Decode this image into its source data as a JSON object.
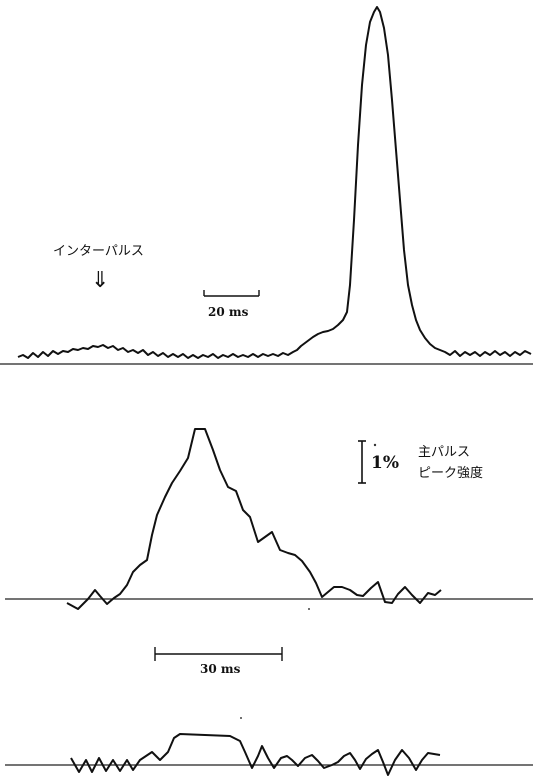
{
  "annotations": {
    "interpulse_label": "インターパルス",
    "interpulse_arrow": "⇓",
    "time_scale_top": "20 ms",
    "time_scale_bottom": "30 ms",
    "intensity_scale_value": "1%",
    "intensity_scale_caption_line1": "主パルス",
    "intensity_scale_caption_line2": "ピーク強度"
  },
  "colors": {
    "trace": "#111111",
    "baseline": "#222222",
    "background": "#ffffff"
  },
  "traces": {
    "top": [
      [
        18,
        357
      ],
      [
        23,
        355
      ],
      [
        28,
        358
      ],
      [
        33,
        353
      ],
      [
        38,
        357
      ],
      [
        43,
        352
      ],
      [
        48,
        356
      ],
      [
        53,
        351
      ],
      [
        58,
        354
      ],
      [
        63,
        351
      ],
      [
        68,
        352
      ],
      [
        73,
        349
      ],
      [
        78,
        350
      ],
      [
        83,
        348
      ],
      [
        88,
        349
      ],
      [
        93,
        346
      ],
      [
        98,
        347
      ],
      [
        103,
        345
      ],
      [
        108,
        348
      ],
      [
        113,
        346
      ],
      [
        118,
        350
      ],
      [
        123,
        348
      ],
      [
        128,
        352
      ],
      [
        133,
        350
      ],
      [
        138,
        353
      ],
      [
        143,
        350
      ],
      [
        148,
        355
      ],
      [
        153,
        352
      ],
      [
        158,
        356
      ],
      [
        163,
        353
      ],
      [
        168,
        357
      ],
      [
        173,
        354
      ],
      [
        178,
        357
      ],
      [
        183,
        354
      ],
      [
        188,
        358
      ],
      [
        193,
        355
      ],
      [
        198,
        358
      ],
      [
        203,
        355
      ],
      [
        208,
        357
      ],
      [
        213,
        354
      ],
      [
        218,
        358
      ],
      [
        223,
        355
      ],
      [
        228,
        357
      ],
      [
        233,
        354
      ],
      [
        238,
        357
      ],
      [
        243,
        355
      ],
      [
        248,
        357
      ],
      [
        253,
        354
      ],
      [
        258,
        357
      ],
      [
        263,
        354
      ],
      [
        268,
        356
      ],
      [
        273,
        354
      ],
      [
        278,
        356
      ],
      [
        283,
        353
      ],
      [
        288,
        355
      ],
      [
        293,
        352
      ],
      [
        297,
        350
      ],
      [
        301,
        346
      ],
      [
        305,
        343
      ],
      [
        309,
        340
      ],
      [
        313,
        337
      ],
      [
        318,
        334
      ],
      [
        323,
        332
      ],
      [
        328,
        331
      ],
      [
        333,
        329
      ],
      [
        338,
        325
      ],
      [
        343,
        320
      ],
      [
        347,
        312
      ],
      [
        350,
        285
      ],
      [
        354,
        220
      ],
      [
        358,
        145
      ],
      [
        362,
        85
      ],
      [
        366,
        45
      ],
      [
        370,
        22
      ],
      [
        374,
        12
      ],
      [
        377,
        7
      ],
      [
        380,
        12
      ],
      [
        384,
        28
      ],
      [
        388,
        55
      ],
      [
        392,
        100
      ],
      [
        396,
        150
      ],
      [
        400,
        200
      ],
      [
        404,
        250
      ],
      [
        408,
        285
      ],
      [
        412,
        305
      ],
      [
        416,
        320
      ],
      [
        420,
        330
      ],
      [
        425,
        338
      ],
      [
        430,
        344
      ],
      [
        435,
        348
      ],
      [
        440,
        350
      ],
      [
        445,
        352
      ],
      [
        450,
        355
      ],
      [
        455,
        351
      ],
      [
        460,
        356
      ],
      [
        465,
        352
      ],
      [
        470,
        355
      ],
      [
        475,
        352
      ],
      [
        480,
        356
      ],
      [
        485,
        352
      ],
      [
        490,
        355
      ],
      [
        495,
        351
      ],
      [
        500,
        355
      ],
      [
        505,
        352
      ],
      [
        510,
        356
      ],
      [
        515,
        352
      ],
      [
        520,
        355
      ],
      [
        525,
        351
      ],
      [
        531,
        354
      ]
    ],
    "middle": [
      [
        67,
        603
      ],
      [
        78,
        609
      ],
      [
        88,
        599
      ],
      [
        95,
        590
      ],
      [
        100,
        596
      ],
      [
        107,
        604
      ],
      [
        114,
        598
      ],
      [
        120,
        594
      ],
      [
        127,
        585
      ],
      [
        133,
        572
      ],
      [
        140,
        565
      ],
      [
        147,
        560
      ],
      [
        152,
        535
      ],
      [
        157,
        515
      ],
      [
        165,
        497
      ],
      [
        172,
        483
      ],
      [
        180,
        471
      ],
      [
        188,
        458
      ],
      [
        195,
        429
      ],
      [
        205,
        429
      ],
      [
        213,
        450
      ],
      [
        220,
        470
      ],
      [
        228,
        487
      ],
      [
        236,
        491
      ],
      [
        243,
        510
      ],
      [
        250,
        517
      ],
      [
        258,
        542
      ],
      [
        265,
        537
      ],
      [
        272,
        532
      ],
      [
        280,
        550
      ],
      [
        288,
        553
      ],
      [
        295,
        555
      ],
      [
        302,
        561
      ],
      [
        310,
        572
      ],
      [
        316,
        583
      ],
      [
        322,
        597
      ],
      [
        328,
        592
      ],
      [
        334,
        587
      ],
      [
        342,
        587
      ],
      [
        350,
        590
      ],
      [
        357,
        595
      ],
      [
        363,
        596
      ],
      [
        371,
        588
      ],
      [
        378,
        582
      ],
      [
        385,
        602
      ],
      [
        392,
        603
      ],
      [
        398,
        594
      ],
      [
        405,
        587
      ],
      [
        412,
        595
      ],
      [
        420,
        603
      ],
      [
        428,
        593
      ],
      [
        435,
        595
      ],
      [
        441,
        590
      ]
    ],
    "bottom": [
      [
        71,
        758
      ],
      [
        79,
        772
      ],
      [
        86,
        760
      ],
      [
        92,
        772
      ],
      [
        99,
        758
      ],
      [
        106,
        771
      ],
      [
        113,
        760
      ],
      [
        120,
        771
      ],
      [
        127,
        760
      ],
      [
        133,
        770
      ],
      [
        140,
        760
      ],
      [
        146,
        756
      ],
      [
        152,
        752
      ],
      [
        160,
        760
      ],
      [
        168,
        752
      ],
      [
        174,
        738
      ],
      [
        180,
        734
      ],
      [
        205,
        735
      ],
      [
        230,
        736
      ],
      [
        240,
        741
      ],
      [
        245,
        752
      ],
      [
        252,
        768
      ],
      [
        258,
        756
      ],
      [
        262,
        746
      ],
      [
        268,
        758
      ],
      [
        274,
        768
      ],
      [
        281,
        758
      ],
      [
        287,
        756
      ],
      [
        292,
        760
      ],
      [
        298,
        766
      ],
      [
        305,
        758
      ],
      [
        312,
        755
      ],
      [
        318,
        761
      ],
      [
        324,
        768
      ],
      [
        332,
        765
      ],
      [
        338,
        762
      ],
      [
        344,
        756
      ],
      [
        350,
        753
      ],
      [
        355,
        760
      ],
      [
        360,
        769
      ],
      [
        366,
        759
      ],
      [
        372,
        754
      ],
      [
        378,
        750
      ],
      [
        383,
        762
      ],
      [
        388,
        775
      ],
      [
        395,
        760
      ],
      [
        402,
        750
      ],
      [
        409,
        758
      ],
      [
        416,
        770
      ],
      [
        422,
        760
      ],
      [
        428,
        753
      ],
      [
        434,
        754
      ],
      [
        440,
        755
      ]
    ]
  }
}
